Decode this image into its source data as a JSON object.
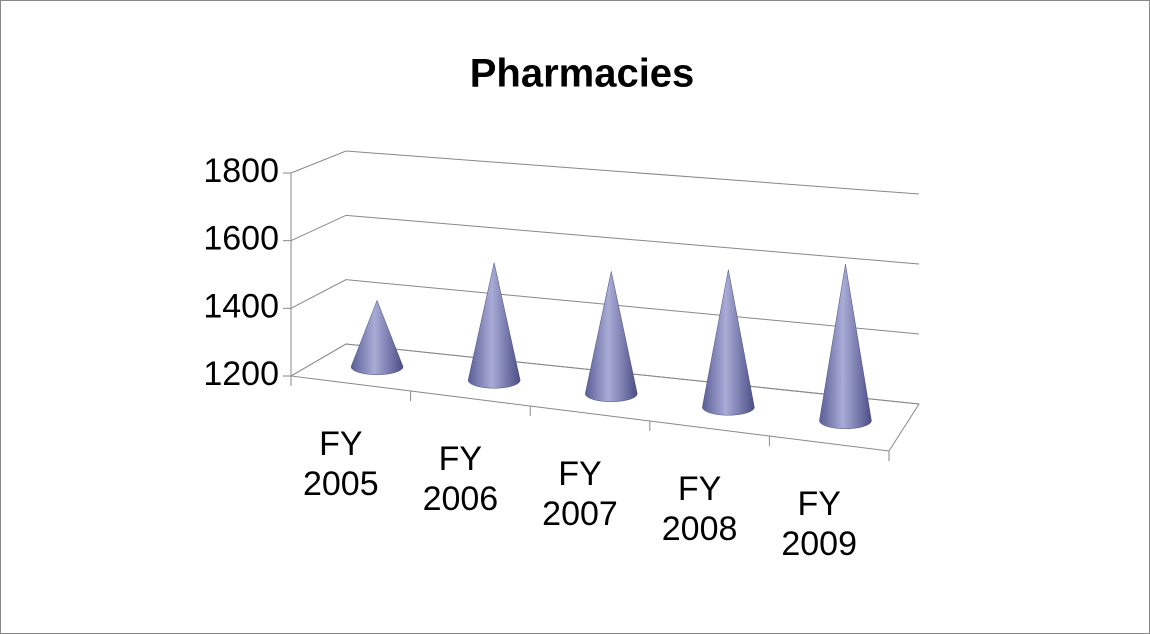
{
  "chart_data": {
    "type": "cone3d",
    "title": "Pharmacies",
    "categories": [
      "FY 2005",
      "FY 2006",
      "FY 2007",
      "FY 2008",
      "FY 2009"
    ],
    "values": [
      1400,
      1550,
      1560,
      1600,
      1650
    ],
    "color": "#7b7fb4",
    "ylim": [
      1200,
      1800
    ],
    "yticks": [
      1200,
      1400,
      1600,
      1800
    ],
    "grid": true
  }
}
